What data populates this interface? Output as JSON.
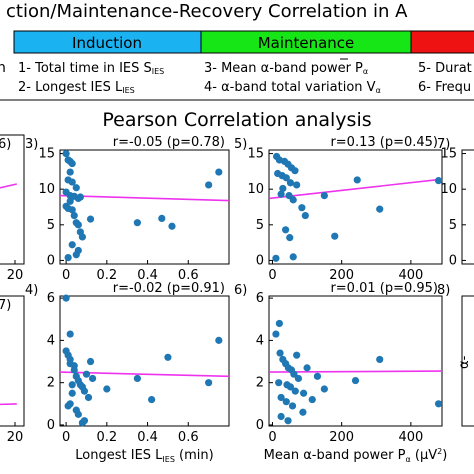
{
  "figure": {
    "title": "ction/Maintenance-Recovery Correlation in A",
    "subtitle": "Pearson Correlation analysis",
    "legend_left_stub": "n",
    "phases": [
      {
        "label": "Induction",
        "color": "#1ab2f0"
      },
      {
        "label": "Maintenance",
        "color": "#16e616"
      },
      {
        "label": "",
        "color": "#ee1212"
      }
    ],
    "metric_labels": [
      {
        "text": "1- Total time in IES S",
        "sub": "IES"
      },
      {
        "text": "2- Longest IES L",
        "sub": "IES"
      },
      {
        "text": "3- Mean α-band power P",
        "sub": "α"
      },
      {
        "text": "4- α-band total variation V",
        "sub": "α"
      },
      {
        "text": "5- Durat",
        "sub": ""
      },
      {
        "text": "6- Frequ",
        "sub": ""
      }
    ],
    "colors": {
      "points": "#1f77b4",
      "fit": "#ee33ee"
    }
  },
  "chart_data": [
    {
      "type": "scatter",
      "panel": "6)",
      "partial": "left-cut",
      "xticks": [
        20
      ],
      "ylim": [
        0,
        15
      ],
      "fit": {
        "x": [
          -10,
          22
        ],
        "y": [
          7.3,
          9.3
        ]
      },
      "x": [],
      "y": []
    },
    {
      "type": "scatter",
      "panel": "3)",
      "annotation": "r=-0.05 (p=0.78)",
      "xlim": [
        -0.03,
        0.8
      ],
      "ylim": [
        -0.5,
        15.5
      ],
      "xticks": [
        0,
        0.2,
        0.4,
        0.6
      ],
      "yticks": [
        0,
        5,
        10,
        15
      ],
      "fit": {
        "x": [
          -0.03,
          0.8
        ],
        "y": [
          9.1,
          8.4
        ]
      },
      "x": [
        0.0,
        0.01,
        0.02,
        0.02,
        0.03,
        0.01,
        0.03,
        0.05,
        0.0,
        0.02,
        0.04,
        0.07,
        0.06,
        0.02,
        0.0,
        0.01,
        0.03,
        0.04,
        0.05,
        0.06,
        0.07,
        0.08,
        0.03,
        0.12,
        0.06,
        0.35,
        0.47,
        0.52,
        0.7,
        0.75,
        0.01,
        0.05
      ],
      "y": [
        15.0,
        14.1,
        13.9,
        12.4,
        13.6,
        11.3,
        11.0,
        10.2,
        9.6,
        9.1,
        9.0,
        8.9,
        8.7,
        8.3,
        7.6,
        7.3,
        7.1,
        6.3,
        5.3,
        5.0,
        4.0,
        3.3,
        2.2,
        5.8,
        1.4,
        5.3,
        5.9,
        4.8,
        10.6,
        12.4,
        0.4,
        0.8
      ]
    },
    {
      "type": "scatter",
      "panel": "5)",
      "annotation": "r=0.13 (p=0.45)",
      "xlim": [
        -10,
        490
      ],
      "ylim": [
        -0.5,
        15.5
      ],
      "xticks": [
        0,
        200,
        400
      ],
      "yticks": [
        0,
        5,
        10,
        15
      ],
      "fit": {
        "x": [
          -10,
          490
        ],
        "y": [
          8.7,
          11.4
        ]
      },
      "x": [
        12,
        20,
        35,
        45,
        55,
        65,
        15,
        28,
        40,
        52,
        70,
        30,
        25,
        48,
        60,
        85,
        95,
        38,
        50,
        150,
        245,
        310,
        480,
        10,
        60,
        180
      ],
      "y": [
        14.6,
        14.1,
        13.9,
        13.5,
        13.0,
        12.6,
        12.2,
        11.9,
        11.6,
        10.9,
        10.6,
        10.1,
        9.3,
        9.1,
        8.5,
        7.4,
        6.3,
        4.3,
        3.2,
        9.1,
        11.3,
        7.2,
        11.2,
        0.3,
        0.5,
        3.4
      ]
    },
    {
      "type": "scatter",
      "panel": "7)",
      "partial": "right-cut",
      "yticks": [
        0,
        5,
        10,
        15
      ],
      "ylim": [
        -0.5,
        15.5
      ],
      "x": [],
      "y": []
    },
    {
      "type": "scatter",
      "panel": "7)",
      "partial": "left-cut",
      "xticks": [
        0,
        20
      ],
      "fit": {
        "x": [
          -10,
          22
        ],
        "y": [
          2.3,
          2.55
        ]
      },
      "x": [],
      "y": []
    },
    {
      "type": "scatter",
      "panel": "4)",
      "annotation": "r=-0.02 (p=0.91)",
      "xlabel": "Longest IES L",
      "xlabel_sub": "IES",
      "xlabel_unit": " (min)",
      "xlim": [
        -0.03,
        0.8
      ],
      "ylim": [
        -0.05,
        6.1
      ],
      "xticks": [
        0,
        0.2,
        0.4,
        0.6
      ],
      "yticks": [
        0,
        2,
        4,
        6
      ],
      "fit": {
        "x": [
          -0.03,
          0.8
        ],
        "y": [
          2.5,
          2.3
        ]
      },
      "x": [
        0.0,
        0.0,
        0.01,
        0.02,
        0.02,
        0.04,
        0.04,
        0.05,
        0.06,
        0.07,
        0.08,
        0.09,
        0.03,
        0.02,
        0.01,
        0.05,
        0.06,
        0.12,
        0.1,
        0.13,
        0.11,
        0.2,
        0.35,
        0.42,
        0.5,
        0.7,
        0.75,
        0.08,
        0.09,
        0.02,
        0.03
      ],
      "y": [
        6.0,
        3.5,
        3.3,
        3.1,
        2.9,
        2.8,
        2.6,
        2.3,
        2.1,
        1.9,
        1.8,
        1.6,
        1.5,
        1.0,
        0.9,
        0.7,
        0.5,
        3.0,
        2.4,
        2.2,
        1.3,
        1.7,
        2.2,
        1.2,
        3.2,
        2.0,
        4.0,
        0.1,
        0.2,
        4.3,
        1.9
      ]
    },
    {
      "type": "scatter",
      "panel": "6)",
      "annotation": "r=0.01 (p=0.95)",
      "xlabel": "Mean α-band power P",
      "xlabel_sub": "α",
      "xlabel_unit": " (μV",
      "xlabel_sup": "2",
      "xlabel_end": ")",
      "xlim": [
        -10,
        490
      ],
      "ylim": [
        -0.05,
        6.1
      ],
      "xticks": [
        0,
        200,
        400
      ],
      "yticks": [
        0,
        2,
        4,
        6
      ],
      "fit": {
        "x": [
          -10,
          490
        ],
        "y": [
          2.5,
          2.55
        ]
      },
      "x": [
        10,
        22,
        30,
        38,
        46,
        55,
        62,
        75,
        18,
        42,
        52,
        66,
        90,
        25,
        40,
        58,
        88,
        70,
        100,
        130,
        150,
        115,
        240,
        310,
        480,
        25,
        45,
        20
      ],
      "y": [
        4.3,
        3.4,
        3.1,
        2.9,
        2.7,
        2.6,
        2.4,
        2.2,
        2.0,
        1.9,
        1.8,
        1.6,
        1.5,
        1.3,
        1.1,
        0.9,
        0.6,
        3.3,
        2.7,
        2.3,
        1.7,
        1.2,
        2.1,
        3.1,
        1.0,
        0.4,
        0.2,
        4.8
      ]
    },
    {
      "type": "scatter",
      "panel": "8)",
      "partial": "right-cut",
      "ylabel_stub": "α-",
      "x": [],
      "y": []
    }
  ]
}
